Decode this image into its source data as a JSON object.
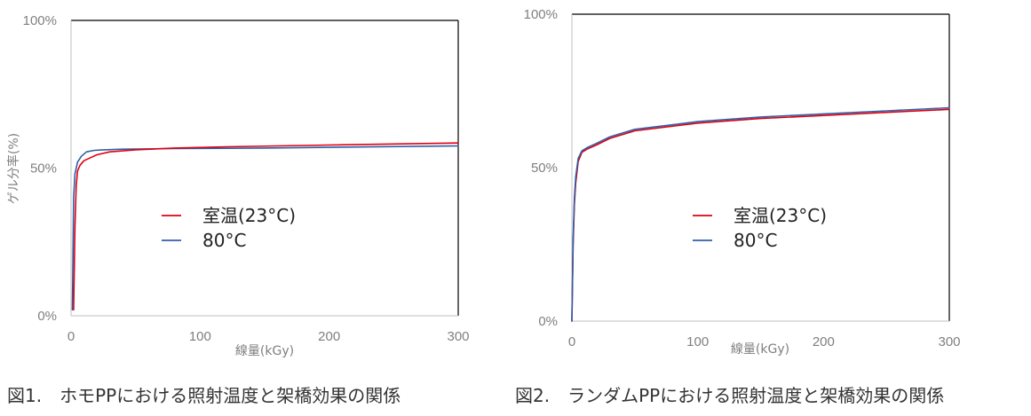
{
  "charts": [
    {
      "chart_data": {
        "type": "line",
        "xlabel": "線量(kGy)",
        "ylabel": "ゲル分率(%)",
        "xlim": [
          0,
          300
        ],
        "ylim": [
          0,
          100
        ],
        "xticks": [
          "0",
          "100",
          "200",
          "300"
        ],
        "yticks": [
          "0%",
          "50%",
          "100%"
        ],
        "legend": "center",
        "series": [
          {
            "name": "室温(23°C)",
            "color": "#e0000f",
            "x": [
              2,
              3,
              4,
              5,
              7,
              10,
              15,
              20,
              30,
              50,
              80,
              120,
              200,
              300
            ],
            "y": [
              2,
              30,
              44,
              49,
              51,
              52.5,
              53.5,
              54.5,
              55.5,
              56.2,
              56.8,
              57.2,
              57.8,
              58.5
            ]
          },
          {
            "name": "80°C",
            "color": "#2f5fa7",
            "x": [
              1,
              2,
              3,
              5,
              8,
              12,
              18,
              25,
              40,
              80,
              150,
              300
            ],
            "y": [
              2,
              40,
              48,
              52,
              54,
              55.5,
              56,
              56.2,
              56.4,
              56.6,
              56.8,
              57.5
            ]
          }
        ]
      }
    },
    {
      "chart_data": {
        "type": "line",
        "xlabel": "線量(kGy)",
        "ylabel": "ゲル分率(%)",
        "xlim": [
          0,
          300
        ],
        "ylim": [
          0,
          100
        ],
        "xticks": [
          "0",
          "100",
          "200",
          "300"
        ],
        "yticks": [
          "0%",
          "50%",
          "100%"
        ],
        "legend": "center",
        "series": [
          {
            "name": "室温(23°C)",
            "color": "#e0000f",
            "x": [
              0,
              1,
              2,
              3,
              5,
              8,
              12,
              20,
              30,
              50,
              100,
              150,
              200,
              250,
              300
            ],
            "y": [
              0,
              25,
              38,
              45,
              52,
              55,
              56,
              57.5,
              59.5,
              62,
              64.5,
              66,
              67,
              68,
              69
            ]
          },
          {
            "name": "80°C",
            "color": "#2f5fa7",
            "x": [
              0,
              1,
              2,
              3,
              5,
              8,
              12,
              20,
              30,
              50,
              100,
              150,
              200,
              250,
              300
            ],
            "y": [
              0,
              27,
              40,
              47,
              53,
              55.5,
              56.5,
              58,
              60,
              62.5,
              65,
              66.5,
              67.5,
              68.5,
              69.5
            ]
          }
        ]
      }
    }
  ],
  "captions": [
    "図1.　ホモPPにおける照射温度と架橋効果の関係",
    "図2.　ランダムPPにおける照射温度と架橋効果の関係"
  ]
}
